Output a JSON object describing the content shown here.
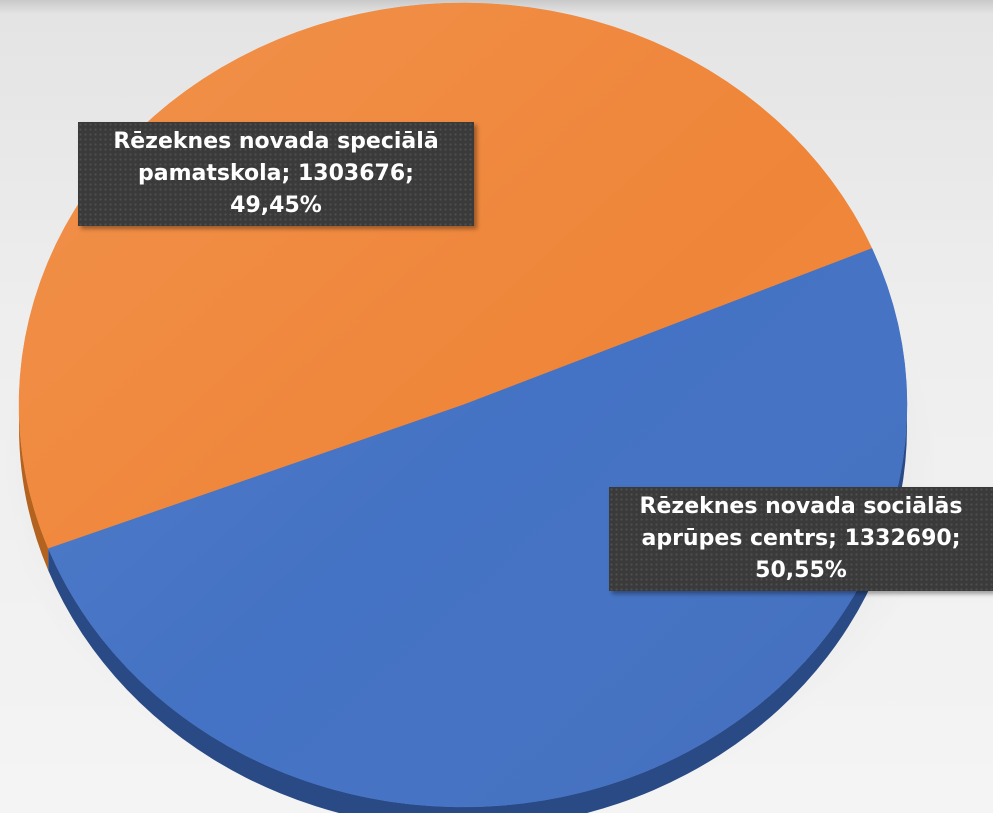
{
  "chart_data": {
    "type": "pie",
    "style": "3d",
    "title": "",
    "slices": [
      {
        "label": "Rēzeknes novada speciālā pamatskola",
        "value": 1303676,
        "percent": "49,45%",
        "value_text": "1303676",
        "color": "#ef8538",
        "side_color": "#b3621f"
      },
      {
        "label": "Rēzeknes novada sociālās aprūpes centrs",
        "value": 1332690,
        "percent": "50,55%",
        "value_text": "1332690",
        "color": "#4472c4",
        "side_color": "#2a4a86"
      }
    ],
    "legend": "none",
    "data_labels": "category; value; percent"
  }
}
